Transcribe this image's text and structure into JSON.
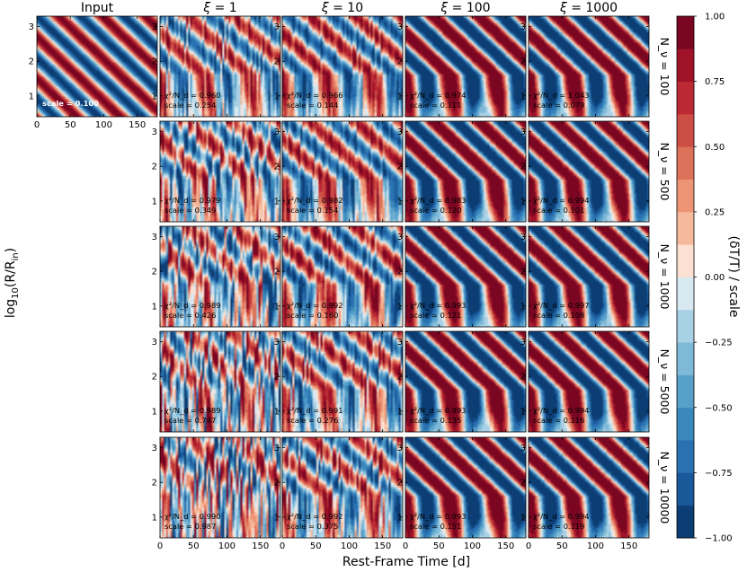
{
  "chart_data": {
    "type": "heatmap",
    "xlabel": "Rest-Frame Time [d]",
    "ylabel": "log10(R/R_in)",
    "xlim": [
      0,
      180
    ],
    "ylim": [
      0.4,
      3.3
    ],
    "xticks": [
      "0",
      "50",
      "100",
      "150"
    ],
    "yticks": [
      "1",
      "2",
      "3"
    ],
    "colorbar": {
      "label": "(δT/T) / scale",
      "range": [
        -1.0,
        1.0
      ],
      "ticks": [
        "1.00",
        "0.75",
        "0.50",
        "0.25",
        "0.00",
        "−0.25",
        "−0.50",
        "−0.75",
        "−1.00"
      ],
      "cmap": "RdBu_r",
      "levels": 16
    },
    "input_panel": {
      "title": "Input",
      "scale_label": "scale = 0.100"
    },
    "columns": [
      {
        "label": "ξ = 1"
      },
      {
        "label": "ξ = 10"
      },
      {
        "label": "ξ = 100"
      },
      {
        "label": "ξ = 1000"
      }
    ],
    "rows": [
      {
        "label": "N_ν = 100",
        "chi2": [
          "0.960",
          "0.966",
          "0.974",
          "1.043"
        ],
        "scale": [
          "0.254",
          "0.144",
          "0.111",
          "0.079"
        ]
      },
      {
        "label": "N_ν = 500",
        "chi2": [
          "0.979",
          "0.982",
          "0.983",
          "0.994"
        ],
        "scale": [
          "0.349",
          "0.154",
          "0.120",
          "0.101"
        ]
      },
      {
        "label": "N_ν = 1000",
        "chi2": [
          "0.989",
          "0.992",
          "0.993",
          "0.997"
        ],
        "scale": [
          "0.426",
          "0.160",
          "0.121",
          "0.108"
        ]
      },
      {
        "label": "N_ν = 5000",
        "chi2": [
          "0.989",
          "0.991",
          "0.993",
          "0.994"
        ],
        "scale": [
          "0.747",
          "0.276",
          "0.135",
          "0.116"
        ]
      },
      {
        "label": "N_ν = 10000",
        "chi2": [
          "0.990",
          "0.992",
          "0.993",
          "0.994"
        ],
        "scale": [
          "0.987",
          "0.375",
          "0.151",
          "0.119"
        ]
      }
    ],
    "chi2_prefix": "χ²/N_d = ",
    "scale_prefix": "scale = "
  }
}
